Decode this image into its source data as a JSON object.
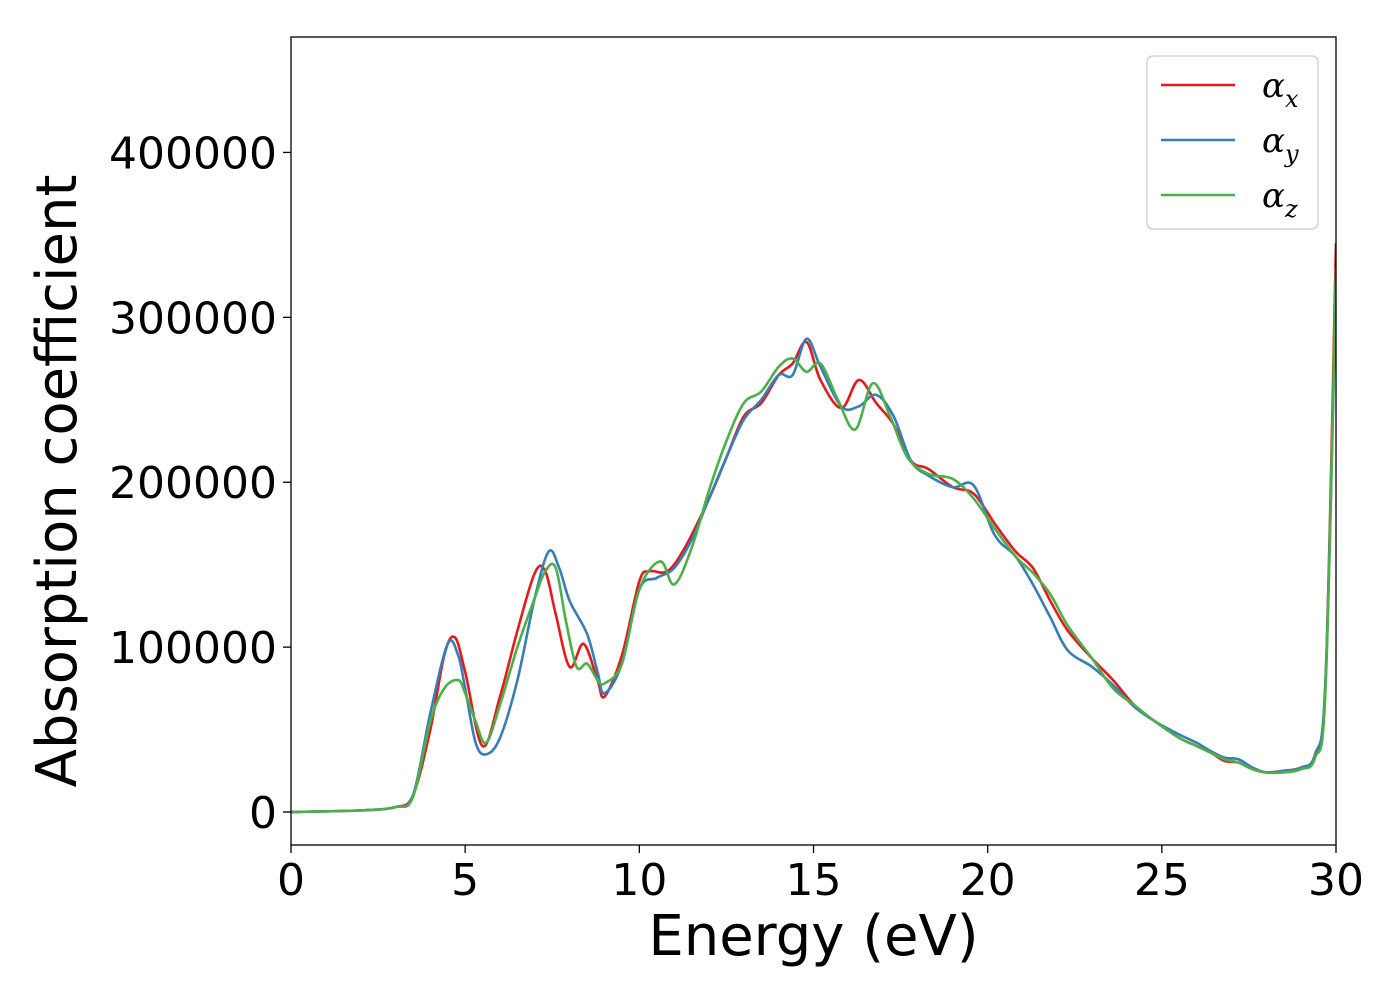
{
  "chart_data": {
    "type": "line",
    "xlabel": "Energy (eV)",
    "ylabel": "Absorption coefficient",
    "xlim": [
      0,
      30
    ],
    "ylim": [
      -20000,
      470000
    ],
    "xticks": [
      0,
      5,
      10,
      15,
      20,
      25,
      30
    ],
    "yticks": [
      0,
      100000,
      200000,
      300000,
      400000
    ],
    "grid": false,
    "legend_position": "top-right",
    "series": [
      {
        "name": "α_x",
        "symbol": "α",
        "subscript": "x",
        "color": "#e41a1c",
        "x": [
          0,
          2,
          3,
          3.5,
          4,
          4.4,
          4.7,
          5,
          5.5,
          6,
          6.5,
          7,
          7.3,
          7.6,
          8,
          8.4,
          8.8,
          9,
          9.5,
          10,
          10.3,
          10.8,
          11.3,
          12,
          12.5,
          13,
          13.5,
          14,
          14.4,
          14.8,
          15.2,
          15.8,
          16.3,
          16.8,
          17.3,
          17.8,
          18.3,
          19,
          19.6,
          20.2,
          20.8,
          21.3,
          21.8,
          22.3,
          23,
          23.6,
          24.2,
          24.8,
          25.5,
          26,
          26.4,
          26.8,
          27.2,
          27.6,
          28,
          28.5,
          29,
          29.4,
          29.7,
          30
        ],
        "y": [
          0,
          1000,
          3000,
          10000,
          50000,
          95000,
          106000,
          85000,
          40000,
          70000,
          110000,
          145000,
          146000,
          120000,
          88000,
          102000,
          80000,
          70000,
          95000,
          140000,
          146000,
          146000,
          160000,
          190000,
          215000,
          240000,
          248000,
          265000,
          272000,
          285000,
          262000,
          245000,
          262000,
          248000,
          235000,
          213000,
          208000,
          197000,
          193000,
          175000,
          158000,
          148000,
          128000,
          110000,
          93000,
          80000,
          65000,
          55000,
          45000,
          40000,
          36000,
          31000,
          30000,
          26000,
          24000,
          25000,
          27000,
          35000,
          80000,
          345000
        ]
      },
      {
        "name": "α_y",
        "symbol": "α",
        "subscript": "y",
        "color": "#377eb8",
        "x": [
          0,
          2,
          3,
          3.5,
          4,
          4.5,
          4.8,
          5,
          5.3,
          5.6,
          6,
          6.5,
          7,
          7.4,
          7.7,
          8,
          8.5,
          8.8,
          9,
          9.5,
          10,
          10.5,
          11,
          11.5,
          12,
          12.5,
          13,
          13.5,
          14,
          14.4,
          14.8,
          15.2,
          15.8,
          16.3,
          16.8,
          17.3,
          17.8,
          18.3,
          19,
          19.6,
          20.2,
          20.8,
          21.3,
          21.8,
          22.3,
          23,
          23.6,
          24.2,
          24.8,
          25.5,
          26,
          26.4,
          26.8,
          27.2,
          27.6,
          28,
          28.5,
          29,
          29.4,
          29.7,
          30
        ],
        "y": [
          0,
          1000,
          3000,
          10000,
          60000,
          102000,
          95000,
          75000,
          42000,
          35000,
          45000,
          80000,
          130000,
          158000,
          148000,
          128000,
          108000,
          85000,
          72000,
          90000,
          135000,
          142000,
          148000,
          165000,
          190000,
          215000,
          238000,
          250000,
          265000,
          265000,
          287000,
          270000,
          246000,
          246000,
          253000,
          240000,
          213000,
          204000,
          197000,
          198000,
          168000,
          155000,
          138000,
          118000,
          98000,
          88000,
          77000,
          64000,
          55000,
          47000,
          42000,
          37000,
          33000,
          32000,
          27000,
          24000,
          25000,
          27000,
          35000,
          80000,
          320000
        ]
      },
      {
        "name": "α_z",
        "symbol": "α",
        "subscript": "z",
        "color": "#4daf4a",
        "x": [
          0,
          2,
          3,
          3.5,
          4,
          4.4,
          4.8,
          5,
          5.3,
          5.6,
          6,
          6.5,
          7,
          7.3,
          7.6,
          7.9,
          8.2,
          8.5,
          8.8,
          9,
          9.5,
          10,
          10.6,
          11,
          11.5,
          12,
          12.5,
          13,
          13.5,
          14,
          14.4,
          14.8,
          15.2,
          15.7,
          16.2,
          16.7,
          17.2,
          17.7,
          18.3,
          19,
          19.6,
          20.2,
          20.8,
          21.3,
          21.8,
          22.3,
          23,
          23.6,
          24.2,
          24.8,
          25.5,
          26,
          26.4,
          26.8,
          27.2,
          27.6,
          28,
          28.5,
          29,
          29.4,
          29.7,
          30
        ],
        "y": [
          0,
          1000,
          3000,
          9000,
          55000,
          75000,
          80000,
          72000,
          55000,
          42000,
          65000,
          100000,
          130000,
          146000,
          148000,
          115000,
          88000,
          90000,
          80000,
          78000,
          90000,
          135000,
          152000,
          138000,
          160000,
          195000,
          225000,
          248000,
          255000,
          270000,
          275000,
          267000,
          272000,
          250000,
          232000,
          260000,
          240000,
          215000,
          205000,
          202000,
          190000,
          172000,
          155000,
          145000,
          132000,
          113000,
          93000,
          75000,
          65000,
          55000,
          45000,
          40000,
          36000,
          32000,
          30000,
          26000,
          24000,
          24000,
          26000,
          33000,
          75000,
          330000
        ]
      }
    ]
  }
}
